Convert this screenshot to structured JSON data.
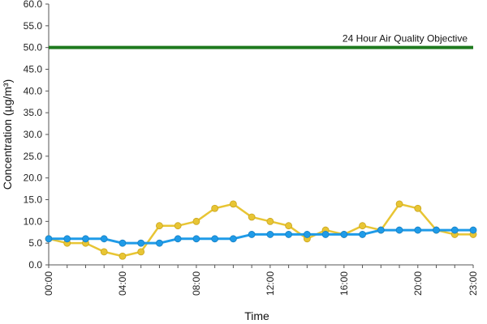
{
  "chart_data": {
    "type": "line",
    "title": "",
    "xlabel": "Time",
    "ylabel": "Concentration (µg/m³)",
    "ylim": [
      0,
      60
    ],
    "yticks": [
      "0.0",
      "5.0",
      "10.0",
      "15.0",
      "20.0",
      "25.0",
      "30.0",
      "35.0",
      "40.0",
      "45.0",
      "50.0",
      "55.0",
      "60.0"
    ],
    "xticks": [
      "00:00",
      "04:00",
      "08:00",
      "12:00",
      "16:00",
      "20:00",
      "23:00"
    ],
    "x": [
      "00:00",
      "01:00",
      "02:00",
      "03:00",
      "04:00",
      "05:00",
      "06:00",
      "07:00",
      "08:00",
      "09:00",
      "10:00",
      "11:00",
      "12:00",
      "13:00",
      "14:00",
      "15:00",
      "16:00",
      "17:00",
      "18:00",
      "19:00",
      "20:00",
      "21:00",
      "22:00",
      "23:00"
    ],
    "grid": false,
    "legend": "none",
    "series": [
      {
        "color": "#e8c534",
        "values": [
          6,
          5,
          5,
          3,
          2,
          3,
          9,
          9,
          10,
          13,
          14,
          11,
          10,
          9,
          6,
          8,
          7,
          9,
          8,
          14,
          13,
          8,
          7,
          7
        ]
      },
      {
        "color": "#1f9be8",
        "values": [
          6,
          6,
          6,
          6,
          5,
          5,
          5,
          6,
          6,
          6,
          6,
          7,
          7,
          7,
          7,
          7,
          7,
          7,
          8,
          8,
          8,
          8,
          8,
          8
        ]
      }
    ],
    "reference_line": {
      "value": 50,
      "label": "24 Hour Air Quality Objective",
      "color": "#1e7a1e"
    }
  }
}
